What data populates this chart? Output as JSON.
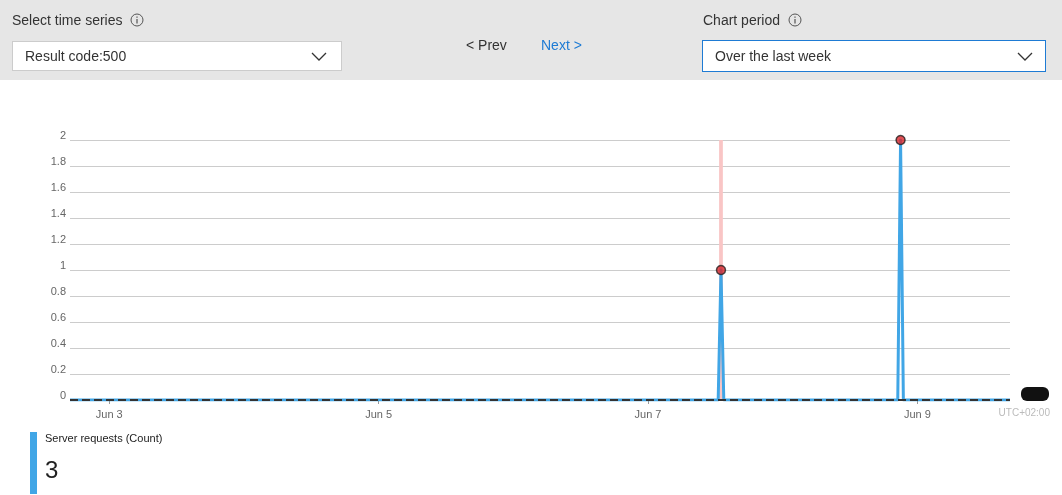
{
  "chart_data": {
    "type": "line",
    "x": [
      "--06-02T17:00",
      "--06-07T12:30",
      "--06-07T13:00",
      "--06-07T13:30",
      "--06-08T20:30",
      "--06-08T21:00",
      "--06-08T21:30",
      "--06-09T16:30"
    ],
    "series": [
      {
        "name": "Server requests (Count)",
        "color": "#41a6e6",
        "values": [
          0,
          0,
          1,
          0,
          0,
          2,
          0,
          0
        ]
      },
      {
        "type": "scatter",
        "marker": "circle",
        "color": "#d9262b",
        "x": [
          "--06-07T13:00",
          "--06-08T21:00"
        ],
        "values": [
          1,
          2
        ]
      }
    ],
    "xlim": [
      "--06-02T17:00",
      "--06-09T16:30"
    ],
    "xticks": [
      {
        "value": "--06-03",
        "label": "Jun 3"
      },
      {
        "value": "--06-05",
        "label": "Jun 5"
      },
      {
        "value": "--06-07",
        "label": "Jun 7"
      },
      {
        "value": "--06-09",
        "label": "Jun 9"
      }
    ],
    "ylim": [
      0,
      2
    ],
    "yticks": [
      0,
      0.2,
      0.4,
      0.6,
      0.8,
      1,
      1.2,
      1.4,
      1.6,
      1.8,
      2
    ],
    "grid": "y",
    "legend": "bottom left",
    "ref_lines": [
      {
        "axis": "y",
        "value": 0,
        "color": "#333333",
        "line_style": "dashed"
      }
    ],
    "bands": [
      {
        "axis": "x",
        "from": "--06-07T12:40",
        "to": "--06-07T13:20",
        "color": "#f9c5c5"
      }
    ],
    "annotations": [
      "Select time series",
      "Result code:500",
      "< Prev",
      "Next >",
      "Chart period",
      "Over the last week",
      "UTC+02:00",
      "3"
    ]
  }
}
